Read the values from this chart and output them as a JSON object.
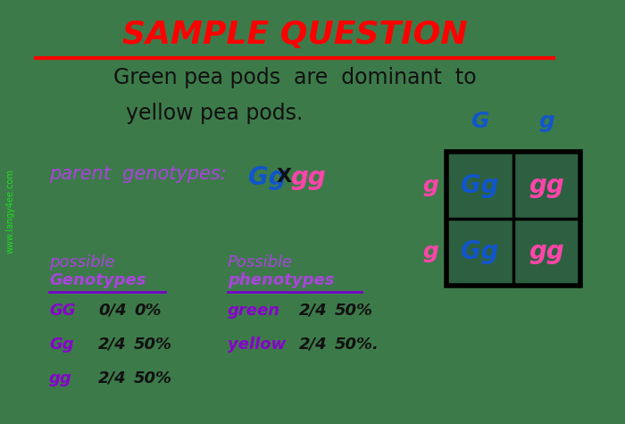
{
  "bg_color": "#3d7a4a",
  "title": "SAMPLE QUESTION",
  "title_color": "#ff0000",
  "title_fontsize": 26,
  "underline_color": "#ff0000",
  "description_line1": "Green pea pods  are  dominant  to",
  "description_line2": "yellow pea pods.",
  "desc_color": "#111111",
  "desc_fontsize": 17,
  "parent_label": "parent  genotypes: ",
  "parent_color": "#aa44dd",
  "parent_fontsize": 15,
  "parent_Gg": "Gg",
  "parent_Gg_color": "#1155cc",
  "parent_x": "X",
  "parent_x_color": "#111111",
  "parent_gg": "gg",
  "parent_gg_color": "#ff44aa",
  "col_headers": [
    "G",
    "g"
  ],
  "col_header_color": "#1155cc",
  "row_headers": [
    "g",
    "g"
  ],
  "row_header_color": "#ff44aa",
  "cell_contents": [
    [
      "Gg",
      "gg"
    ],
    [
      "Gg",
      "gg"
    ]
  ],
  "cell_colors": [
    [
      "#1155cc",
      "#ff44aa"
    ],
    [
      "#1155cc",
      "#ff44aa"
    ]
  ],
  "cell_bg": "#2d6040",
  "geno_rows": [
    {
      "label": "GG",
      "label_color": "#8800cc",
      "fraction": "0/4",
      "percent": "0%"
    },
    {
      "label": "Gg",
      "label_color": "#8800cc",
      "fraction": "2/4",
      "percent": "50%"
    },
    {
      "label": "gg",
      "label_color": "#8800cc",
      "fraction": "2/4",
      "percent": "50%"
    }
  ],
  "pheno_rows": [
    {
      "label": "green",
      "label_color": "#8800cc",
      "fraction": "2/4",
      "percent": "50%"
    },
    {
      "label": "yellow",
      "label_color": "#8800cc",
      "fraction": "2/4",
      "percent": "50%."
    }
  ],
  "table_color": "#7700cc",
  "section_title_color": "#aa44dd",
  "watermark": "www.langy4ee.com",
  "watermark_color": "#22dd22"
}
